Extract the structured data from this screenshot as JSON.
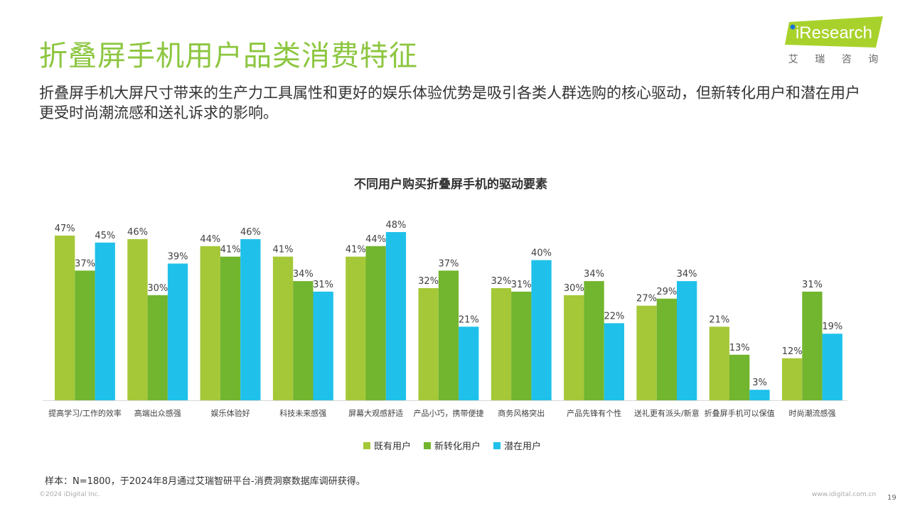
{
  "page": {
    "title": "折叠屏手机用户品类消费特征",
    "subtitle": "折叠屏手机大屏尺寸带来的生产力工具属性和更好的娱乐体验优势是吸引各类人群选购的核心驱动，但新转化用户和潜在用户更受时尚潮流感和送礼诉求的影响。",
    "logo_text": "iResearch",
    "logo_cn": [
      "艾",
      "瑞",
      "咨",
      "询"
    ],
    "note": "样本：N=1800，于2024年8月通过艾瑞智研平台-消费洞察数据库调研获得。",
    "copyright": "©2024 iDigital Inc.",
    "website": "www.idigital.com.cn",
    "page_number": "19"
  },
  "chart_data": {
    "type": "bar",
    "title": "不同用户购买折叠屏手机的驱动要素",
    "categories": [
      "提高学习/工作的效率",
      "高端出众感强",
      "娱乐体验好",
      "科技未来感强",
      "屏幕大观感舒适",
      "产品小巧，携带便捷",
      "商务风格突出",
      "产品先锋有个性",
      "送礼更有派头/新意",
      "折叠屏手机可以保值",
      "时尚潮流感强"
    ],
    "series": [
      {
        "name": "既有用户",
        "color": "#a5c838",
        "values": [
          47,
          46,
          44,
          41,
          41,
          32,
          32,
          30,
          27,
          21,
          12
        ]
      },
      {
        "name": "新转化用户",
        "color": "#72b52e",
        "values": [
          37,
          30,
          41,
          34,
          44,
          37,
          31,
          34,
          29,
          13,
          31
        ]
      },
      {
        "name": "潜在用户",
        "color": "#1fc1ea",
        "values": [
          45,
          39,
          46,
          31,
          48,
          21,
          40,
          22,
          34,
          3,
          19
        ]
      }
    ],
    "value_suffix": "%",
    "ylim": [
      0,
      48
    ],
    "grid": false,
    "legend_position": "bottom"
  },
  "colors": {
    "title": "#8cc63f",
    "logo": "#a8d22b"
  }
}
